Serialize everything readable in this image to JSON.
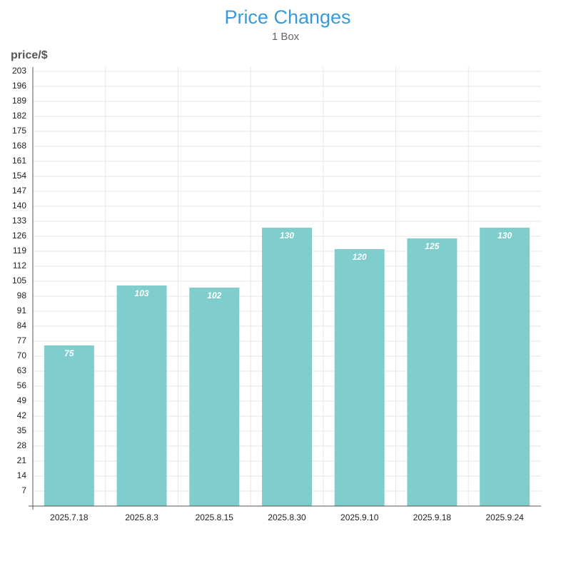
{
  "chart_data": {
    "type": "bar",
    "title": "Price Changes",
    "subtitle": "1 Box",
    "y_label": "price/$",
    "categories": [
      "2025.7.18",
      "2025.8.3",
      "2025.8.15",
      "2025.8.30",
      "2025.9.10",
      "2025.9.18",
      "2025.9.24"
    ],
    "values": [
      75,
      103,
      102,
      130,
      120,
      125,
      130
    ],
    "color": "#80cdcd",
    "ylim": [
      0,
      203
    ],
    "yticks": [
      7,
      14,
      21,
      28,
      35,
      42,
      49,
      56,
      63,
      70,
      77,
      84,
      91,
      98,
      105,
      112,
      119,
      126,
      133,
      140,
      147,
      154,
      161,
      168,
      175,
      182,
      189,
      196,
      203
    ],
    "grid": true
  }
}
